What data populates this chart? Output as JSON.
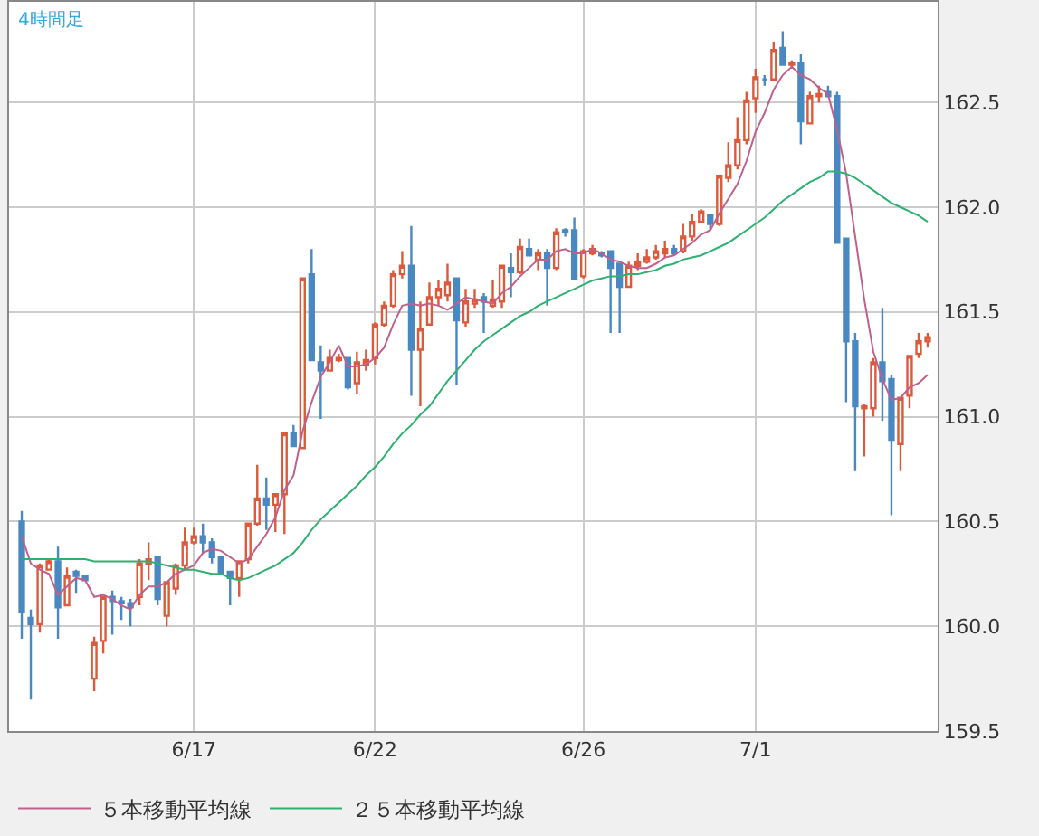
{
  "chart_data": {
    "type": "candlestick",
    "title": "4時間足",
    "categories": [
      null,
      null,
      null,
      null,
      null,
      null,
      null,
      null,
      null,
      null,
      null,
      null,
      null,
      null,
      null,
      null,
      null,
      null,
      null,
      "6/17",
      null,
      null,
      null,
      null,
      null,
      null,
      null,
      null,
      null,
      null,
      null,
      null,
      null,
      null,
      null,
      null,
      null,
      null,
      null,
      "6/22",
      null,
      null,
      null,
      null,
      null,
      null,
      null,
      null,
      null,
      null,
      null,
      null,
      null,
      null,
      null,
      null,
      null,
      null,
      null,
      null,
      null,
      null,
      "6/26",
      null,
      null,
      null,
      null,
      null,
      null,
      null,
      null,
      null,
      null,
      null,
      null,
      null,
      null,
      null,
      null,
      null,
      null,
      "7/1",
      null,
      null,
      null,
      null,
      null,
      null,
      null,
      null,
      null,
      null,
      null,
      null,
      null,
      null,
      null,
      null,
      null,
      null,
      null
    ],
    "ohlc": [
      [
        160.5,
        160.55,
        159.94,
        160.07
      ],
      [
        160.04,
        160.08,
        159.65,
        160.01
      ],
      [
        160.01,
        160.3,
        159.97,
        160.29
      ],
      [
        160.27,
        160.32,
        160.27,
        160.31
      ],
      [
        160.31,
        160.38,
        159.94,
        160.09
      ],
      [
        160.1,
        160.28,
        160.1,
        160.24
      ],
      [
        160.26,
        160.27,
        160.16,
        160.24
      ],
      [
        160.24,
        160.24,
        160.22,
        160.22
      ],
      [
        159.75,
        159.95,
        159.69,
        159.92
      ],
      [
        159.93,
        160.14,
        159.87,
        160.14
      ],
      [
        160.14,
        160.17,
        159.96,
        160.12
      ],
      [
        160.12,
        160.14,
        160.03,
        160.11
      ],
      [
        160.11,
        160.13,
        160.0,
        160.09
      ],
      [
        160.14,
        160.32,
        160.1,
        160.3
      ],
      [
        160.3,
        160.4,
        160.22,
        160.32
      ],
      [
        160.33,
        160.33,
        160.1,
        160.13
      ],
      [
        160.05,
        160.21,
        160.0,
        160.21
      ],
      [
        160.18,
        160.3,
        160.15,
        160.29
      ],
      [
        160.29,
        160.47,
        160.27,
        160.4
      ],
      [
        160.4,
        160.47,
        160.39,
        160.43
      ],
      [
        160.43,
        160.49,
        160.35,
        160.4
      ],
      [
        160.4,
        160.42,
        160.3,
        160.33
      ],
      [
        160.33,
        160.33,
        160.25,
        160.25
      ],
      [
        160.26,
        160.26,
        160.1,
        160.23
      ],
      [
        160.23,
        160.31,
        160.14,
        160.31
      ],
      [
        160.32,
        160.49,
        160.3,
        160.49
      ],
      [
        160.49,
        160.77,
        160.48,
        160.61
      ],
      [
        160.61,
        160.71,
        160.46,
        160.58
      ],
      [
        160.58,
        160.63,
        160.45,
        160.63
      ],
      [
        160.63,
        160.92,
        160.44,
        160.92
      ],
      [
        160.92,
        160.96,
        160.86,
        160.86
      ],
      [
        160.85,
        161.66,
        160.85,
        161.66
      ],
      [
        161.68,
        161.8,
        161.27,
        161.27
      ],
      [
        161.26,
        161.34,
        160.99,
        161.22
      ],
      [
        161.22,
        161.32,
        161.22,
        161.28
      ],
      [
        161.27,
        161.3,
        161.26,
        161.28
      ],
      [
        161.28,
        161.28,
        161.13,
        161.14
      ],
      [
        161.16,
        161.31,
        161.11,
        161.26
      ],
      [
        161.25,
        161.32,
        161.22,
        161.27
      ],
      [
        161.28,
        161.45,
        161.25,
        161.44
      ],
      [
        161.44,
        161.55,
        161.43,
        161.53
      ],
      [
        161.53,
        161.7,
        161.52,
        161.68
      ],
      [
        161.68,
        161.79,
        161.66,
        161.72
      ],
      [
        161.72,
        161.91,
        161.1,
        161.32
      ],
      [
        161.32,
        161.55,
        161.05,
        161.42
      ],
      [
        161.44,
        161.64,
        161.44,
        161.57
      ],
      [
        161.57,
        161.65,
        161.53,
        161.61
      ],
      [
        161.58,
        161.73,
        161.55,
        161.64
      ],
      [
        161.66,
        161.66,
        161.15,
        161.46
      ],
      [
        161.45,
        161.61,
        161.43,
        161.55
      ],
      [
        161.54,
        161.61,
        161.52,
        161.56
      ],
      [
        161.57,
        161.59,
        161.4,
        161.55
      ],
      [
        161.53,
        161.65,
        161.52,
        161.56
      ],
      [
        161.55,
        161.72,
        161.52,
        161.72
      ],
      [
        161.71,
        161.78,
        161.57,
        161.69
      ],
      [
        161.69,
        161.85,
        161.68,
        161.81
      ],
      [
        161.8,
        161.85,
        161.77,
        161.77
      ],
      [
        161.75,
        161.8,
        161.7,
        161.78
      ],
      [
        161.78,
        161.8,
        161.53,
        161.71
      ],
      [
        161.71,
        161.9,
        161.7,
        161.88
      ],
      [
        161.89,
        161.9,
        161.86,
        161.88
      ],
      [
        161.89,
        161.95,
        161.66,
        161.66
      ],
      [
        161.67,
        161.8,
        161.66,
        161.79
      ],
      [
        161.78,
        161.82,
        161.77,
        161.8
      ],
      [
        161.78,
        161.79,
        161.76,
        161.77
      ],
      [
        161.79,
        161.79,
        161.4,
        161.71
      ],
      [
        161.73,
        161.73,
        161.4,
        161.62
      ],
      [
        161.62,
        161.74,
        161.62,
        161.72
      ],
      [
        161.72,
        161.78,
        161.7,
        161.74
      ],
      [
        161.74,
        161.8,
        161.73,
        161.76
      ],
      [
        161.76,
        161.82,
        161.75,
        161.79
      ],
      [
        161.78,
        161.84,
        161.76,
        161.8
      ],
      [
        161.8,
        161.82,
        161.77,
        161.78
      ],
      [
        161.79,
        161.92,
        161.78,
        161.86
      ],
      [
        161.86,
        161.97,
        161.84,
        161.93
      ],
      [
        161.93,
        161.99,
        161.93,
        161.98
      ],
      [
        161.96,
        161.97,
        161.89,
        161.92
      ],
      [
        161.92,
        162.15,
        161.91,
        162.15
      ],
      [
        162.14,
        162.31,
        162.12,
        162.2
      ],
      [
        162.2,
        162.43,
        162.18,
        162.32
      ],
      [
        162.32,
        162.55,
        162.3,
        162.51
      ],
      [
        162.52,
        162.66,
        162.45,
        162.62
      ],
      [
        162.61,
        162.63,
        162.58,
        162.61
      ],
      [
        162.61,
        162.79,
        162.61,
        162.75
      ],
      [
        162.76,
        162.84,
        162.68,
        162.68
      ],
      [
        162.68,
        162.7,
        162.66,
        162.69
      ],
      [
        162.69,
        162.73,
        162.3,
        162.41
      ],
      [
        162.4,
        162.55,
        162.4,
        162.53
      ],
      [
        162.53,
        162.58,
        162.5,
        162.54
      ],
      [
        162.55,
        162.58,
        162.53,
        162.53
      ],
      [
        162.53,
        162.55,
        161.83,
        161.83
      ],
      [
        161.85,
        161.85,
        161.07,
        161.36
      ],
      [
        161.36,
        161.4,
        160.74,
        161.05
      ],
      [
        161.04,
        161.06,
        160.81,
        161.05
      ],
      [
        161.04,
        161.28,
        161.0,
        161.26
      ],
      [
        161.26,
        161.52,
        160.98,
        161.17
      ],
      [
        161.18,
        161.2,
        160.53,
        160.89
      ],
      [
        160.87,
        161.09,
        160.74,
        161.09
      ],
      [
        161.1,
        161.29,
        161.04,
        161.29
      ],
      [
        161.3,
        161.4,
        161.28,
        161.36
      ],
      [
        161.36,
        161.4,
        161.33,
        161.38
      ]
    ],
    "series": [
      {
        "name": "５本移動平均線",
        "type": "line",
        "color": "#c0608c",
        "values": [
          160.43,
          160.3,
          160.27,
          160.25,
          160.15,
          160.19,
          160.23,
          160.22,
          160.14,
          160.15,
          160.13,
          160.1,
          160.08,
          160.15,
          160.19,
          160.19,
          160.21,
          160.25,
          160.27,
          160.29,
          160.35,
          160.37,
          160.36,
          160.33,
          160.3,
          160.32,
          160.38,
          160.44,
          160.52,
          160.65,
          160.72,
          160.93,
          161.07,
          161.19,
          161.26,
          161.34,
          161.24,
          161.24,
          161.25,
          161.28,
          161.33,
          161.44,
          161.53,
          161.54,
          161.53,
          161.54,
          161.53,
          161.51,
          161.54,
          161.57,
          161.56,
          161.55,
          161.54,
          161.59,
          161.62,
          161.67,
          161.71,
          161.75,
          161.75,
          161.79,
          161.8,
          161.78,
          161.78,
          161.8,
          161.78,
          161.75,
          161.74,
          161.72,
          161.71,
          161.71,
          161.73,
          161.76,
          161.77,
          161.8,
          161.83,
          161.87,
          161.89,
          161.97,
          162.04,
          162.11,
          162.22,
          162.36,
          162.45,
          162.56,
          162.63,
          162.67,
          162.63,
          162.61,
          162.57,
          162.54,
          162.37,
          162.16,
          161.86,
          161.56,
          161.31,
          161.18,
          161.08,
          161.09,
          161.14,
          161.16,
          161.2
        ]
      },
      {
        "name": "２５本移動平均線",
        "type": "line",
        "color": "#2eb070",
        "values": [
          160.32,
          160.32,
          160.32,
          160.32,
          160.32,
          160.32,
          160.32,
          160.32,
          160.31,
          160.31,
          160.31,
          160.31,
          160.31,
          160.31,
          160.31,
          160.3,
          160.29,
          160.28,
          160.27,
          160.27,
          160.26,
          160.25,
          160.25,
          160.23,
          160.22,
          160.23,
          160.25,
          160.27,
          160.29,
          160.32,
          160.35,
          160.4,
          160.46,
          160.51,
          160.55,
          160.59,
          160.63,
          160.67,
          160.72,
          160.76,
          160.81,
          160.87,
          160.92,
          160.96,
          161.01,
          161.05,
          161.11,
          161.17,
          161.22,
          161.27,
          161.32,
          161.36,
          161.39,
          161.42,
          161.45,
          161.48,
          161.5,
          161.53,
          161.55,
          161.57,
          161.59,
          161.61,
          161.63,
          161.65,
          161.66,
          161.67,
          161.67,
          161.68,
          161.68,
          161.69,
          161.7,
          161.72,
          161.73,
          161.75,
          161.76,
          161.77,
          161.79,
          161.81,
          161.83,
          161.86,
          161.89,
          161.92,
          161.95,
          161.99,
          162.03,
          162.06,
          162.09,
          162.12,
          162.14,
          162.17,
          162.17,
          162.16,
          162.14,
          162.11,
          162.08,
          162.05,
          162.02,
          162.0,
          161.98,
          161.96,
          161.93
        ]
      }
    ],
    "ylim": [
      159.5,
      162.98
    ],
    "yticks": [
      {
        "value": 159.5,
        "label": "159.5"
      },
      {
        "value": 160,
        "label": "160.0"
      },
      {
        "value": 160.5,
        "label": "160.5"
      },
      {
        "value": 161,
        "label": "161.0"
      },
      {
        "value": 161.5,
        "label": "161.5"
      },
      {
        "value": 162,
        "label": "162.0"
      },
      {
        "value": 162.5,
        "label": "162.5"
      }
    ],
    "grid": true,
    "legend": "bottom"
  }
}
